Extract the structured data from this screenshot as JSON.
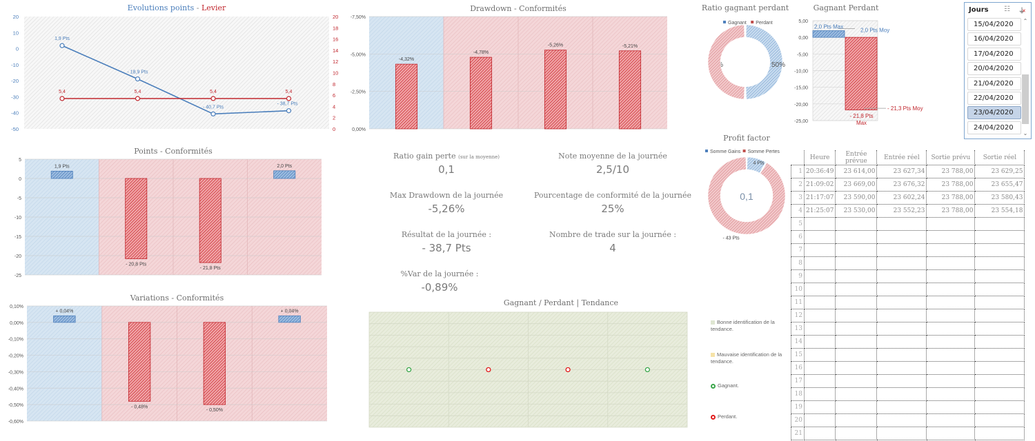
{
  "colors": {
    "blue": "#4a7ebb",
    "red": "#c0262d",
    "bright_red": "#e01b1b",
    "green": "#3aa64a",
    "blue_zone": "#cfe0ef",
    "red_zone": "#f2d0d2",
    "green_zone": "#e5ead6"
  },
  "kpis": [
    {
      "label": "Ratio gain perte",
      "note": "(sur la moyenne)",
      "value": "0,1"
    },
    {
      "label": "Note moyenne de la journée",
      "note": "",
      "value": "2,5/10"
    },
    {
      "label": "Max Drawdown de la journée",
      "note": "",
      "value": "-5,26%"
    },
    {
      "label": "Pourcentage de conformité de la journée",
      "note": "",
      "value": "25%"
    },
    {
      "label": "Résultat de la journée :",
      "note": "",
      "value": "- 38,7 Pts"
    },
    {
      "label": "Nombre de trade sur la journée :",
      "note": "",
      "value": "4"
    },
    {
      "label": "%Var de la journée :",
      "note": "",
      "value": "-0,89%"
    }
  ],
  "slicer": {
    "title": "Jours",
    "multiselect_icon": "multiselect-icon",
    "clear_filter_icon": "clear-filter-icon",
    "items": [
      "15/04/2020",
      "16/04/2020",
      "17/04/2020",
      "20/04/2020",
      "21/04/2020",
      "22/04/2020",
      "23/04/2020",
      "24/04/2020"
    ],
    "selected": "23/04/2020"
  },
  "trades_table": {
    "headers": [
      "Heure",
      "Entrée prévue",
      "Entrée réel",
      "Sortie prévu",
      "Sortie réel"
    ],
    "rows": [
      {
        "n": "1",
        "cells": [
          "20:36:49",
          "23 614,00",
          "23 627,34",
          "23 788,00",
          "23 629,25"
        ]
      },
      {
        "n": "2",
        "cells": [
          "21:09:02",
          "23 669,00",
          "23 676,32",
          "23 788,00",
          "23 655,47"
        ]
      },
      {
        "n": "3",
        "cells": [
          "21:17:07",
          "23 590,00",
          "23 602,24",
          "23 788,00",
          "23 580,43"
        ]
      },
      {
        "n": "4",
        "cells": [
          "21:25:07",
          "23 530,00",
          "23 552,23",
          "23 788,00",
          "23 554,18"
        ]
      },
      {
        "n": "5",
        "cells": [
          "",
          "",
          "",
          "",
          ""
        ]
      },
      {
        "n": "6",
        "cells": [
          "",
          "",
          "",
          "",
          ""
        ]
      },
      {
        "n": "7",
        "cells": [
          "",
          "",
          "",
          "",
          ""
        ]
      },
      {
        "n": "8",
        "cells": [
          "",
          "",
          "",
          "",
          ""
        ]
      },
      {
        "n": "9",
        "cells": [
          "",
          "",
          "",
          "",
          ""
        ]
      },
      {
        "n": "10",
        "cells": [
          "",
          "",
          "",
          "",
          ""
        ]
      },
      {
        "n": "11",
        "cells": [
          "",
          "",
          "",
          "",
          ""
        ]
      },
      {
        "n": "12",
        "cells": [
          "",
          "",
          "",
          "",
          ""
        ]
      },
      {
        "n": "13",
        "cells": [
          "",
          "",
          "",
          "",
          ""
        ]
      },
      {
        "n": "14",
        "cells": [
          "",
          "",
          "",
          "",
          ""
        ]
      },
      {
        "n": "15",
        "cells": [
          "",
          "",
          "",
          "",
          ""
        ]
      },
      {
        "n": "16",
        "cells": [
          "",
          "",
          "",
          "",
          ""
        ]
      },
      {
        "n": "17",
        "cells": [
          "",
          "",
          "",
          "",
          ""
        ]
      },
      {
        "n": "18",
        "cells": [
          "",
          "",
          "",
          "",
          ""
        ]
      },
      {
        "n": "19",
        "cells": [
          "",
          "",
          "",
          "",
          ""
        ]
      },
      {
        "n": "20",
        "cells": [
          "",
          "",
          "",
          "",
          ""
        ]
      },
      {
        "n": "21",
        "cells": [
          "",
          "",
          "",
          "",
          ""
        ]
      }
    ]
  },
  "tendance_legend": [
    {
      "kind": "swatch",
      "color": "#dfe6d2",
      "label": "Bonne identification de la tendance."
    },
    {
      "kind": "swatch",
      "color": "#f6e3a8",
      "label": "Mauvaise identification de la tendance."
    },
    {
      "kind": "ring",
      "color": "#3aa64a",
      "label": "Gagnant."
    },
    {
      "kind": "ring",
      "color": "#e01b1b",
      "label": "Perdant."
    }
  ],
  "chart_data": [
    {
      "id": "evolution",
      "type": "line",
      "title_parts": [
        "Evolutions points",
        " - ",
        "Levier"
      ],
      "x": [
        1,
        2,
        3,
        4
      ],
      "series": [
        {
          "name": "Points",
          "axis": "left",
          "values": [
            1.9,
            -18.9,
            -40.7,
            -38.7
          ],
          "labels": [
            "1,9 Pts",
            "- 18,9 Pts",
            "- 40,7 Pts",
            "- 38,7 Pts"
          ]
        },
        {
          "name": "Levier",
          "axis": "right",
          "values": [
            5.4,
            5.4,
            5.4,
            5.4
          ],
          "labels": [
            "5,4",
            "5,4",
            "5,4",
            "5,4"
          ]
        }
      ],
      "ylim_left": [
        -50,
        20
      ],
      "yticks_left": [
        "20",
        "10",
        "0",
        "-10",
        "-20",
        "-30",
        "-40",
        "-50"
      ],
      "ylim_right": [
        0,
        20
      ],
      "yticks_right": [
        "20",
        "18",
        "16",
        "14",
        "12",
        "10",
        "8",
        "6",
        "4",
        "2",
        "0"
      ]
    },
    {
      "id": "points",
      "type": "bar",
      "title": "Points - Conformités",
      "categories": [
        "1",
        "2",
        "3",
        "4"
      ],
      "zones": [
        "conforme",
        "non-conforme",
        "non-conforme",
        "non-conforme"
      ],
      "values": [
        1.9,
        -20.8,
        -21.8,
        2.0
      ],
      "labels": [
        "1,9 Pts",
        "- 20,8 Pts",
        "- 21,8 Pts",
        "2,0 Pts"
      ],
      "ylim": [
        -25,
        5
      ],
      "yticks": [
        "5",
        "0",
        "-5",
        "-10",
        "-15",
        "-20",
        "-25"
      ]
    },
    {
      "id": "variations",
      "type": "bar",
      "title": "Variations - Conformités",
      "categories": [
        "1",
        "2",
        "3",
        "4"
      ],
      "zones": [
        "conforme",
        "non-conforme",
        "non-conforme",
        "non-conforme"
      ],
      "values": [
        0.04,
        -0.48,
        -0.5,
        0.04
      ],
      "labels": [
        "+ 0,04%",
        "- 0,48%",
        "- 0,50%",
        "+ 0,04%"
      ],
      "ylim": [
        -0.6,
        0.1
      ],
      "yticks": [
        "0,10%",
        "0,00%",
        "-0,10%",
        "-0,20%",
        "-0,30%",
        "-0,40%",
        "-0,50%",
        "-0,60%"
      ]
    },
    {
      "id": "drawdown",
      "type": "bar",
      "title": "Drawdown - Conformités",
      "categories": [
        "1",
        "2",
        "3",
        "4"
      ],
      "zones": [
        "conforme",
        "non-conforme",
        "non-conforme",
        "non-conforme"
      ],
      "values": [
        -4.32,
        -4.78,
        -5.26,
        -5.21
      ],
      "labels": [
        "-4,32%",
        "-4,78%",
        "-5,26%",
        "-5,21%"
      ],
      "ylim": [
        0,
        -7.5
      ],
      "yticks": [
        "-7,50%",
        "-5,00%",
        "-2,50%",
        "0,00%"
      ]
    },
    {
      "id": "ratio",
      "type": "pie",
      "title": "Ratio gagnant perdant",
      "legend": [
        "Gagnant",
        "Perdant"
      ],
      "values": [
        50,
        50
      ],
      "labels": [
        "50%",
        "50%"
      ]
    },
    {
      "id": "gagnant_perdant",
      "type": "bar",
      "title": "Gagnant Perdant",
      "categories": [
        "Gagnant",
        "Perdant"
      ],
      "max_values": [
        2.0,
        -21.8
      ],
      "avg_values": [
        2.0,
        -21.3
      ],
      "labels_max": [
        "2,0 Pts Max",
        "- 21,8 Pts Max"
      ],
      "labels_avg": [
        "2,0 Pts Moy",
        "- 21,3 Pts Moy"
      ],
      "ylim": [
        -25,
        5
      ],
      "yticks": [
        "5,00",
        "0,00",
        "-5,00",
        "-10,00",
        "-15,00",
        "-20,00",
        "-25,00"
      ]
    },
    {
      "id": "profit_factor",
      "type": "pie",
      "title": "Profit factor",
      "legend": [
        "Somme Gains",
        "Somme Pertes"
      ],
      "values": [
        4,
        43
      ],
      "labels": [
        "4 Pts",
        "- 43 Pts"
      ],
      "center_label": "0,1"
    },
    {
      "id": "tendance",
      "type": "scatter",
      "title": "Gagnant / Perdant | Tendance",
      "x": [
        1,
        2,
        3,
        4
      ],
      "y": [
        0,
        0,
        0,
        0
      ],
      "outcome": [
        "Gagnant",
        "Perdant",
        "Perdant",
        "Gagnant"
      ],
      "ylim": [
        -5,
        5
      ]
    }
  ]
}
